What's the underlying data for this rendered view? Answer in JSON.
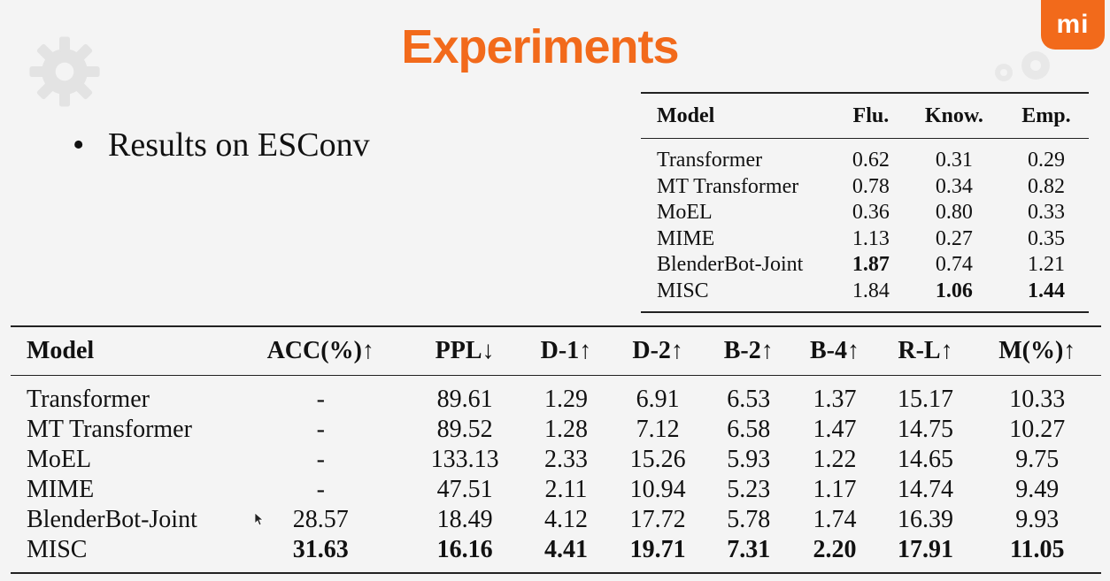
{
  "title": "Experiments",
  "logo_text": "mi",
  "bullet": "Results on ESConv",
  "human_eval_table": {
    "headers": [
      "Model",
      "Flu.",
      "Know.",
      "Emp."
    ],
    "rows": [
      [
        "Transformer",
        "0.62",
        "0.31",
        "0.29"
      ],
      [
        "MT Transformer",
        "0.78",
        "0.34",
        "0.82"
      ],
      [
        "MoEL",
        "0.36",
        "0.80",
        "0.33"
      ],
      [
        "MIME",
        "1.13",
        "0.27",
        "0.35"
      ],
      [
        "BlenderBot-Joint",
        "1.87",
        "0.74",
        "1.21"
      ],
      [
        "MISC",
        "1.84",
        "1.06",
        "1.44"
      ]
    ]
  },
  "auto_eval_table": {
    "headers": [
      "Model",
      "ACC(%)↑",
      "PPL↓",
      "D-1↑",
      "D-2↑",
      "B-2↑",
      "B-4↑",
      "R-L↑",
      "M(%)↑"
    ],
    "rows": [
      [
        "Transformer",
        "-",
        "89.61",
        "1.29",
        "6.91",
        "6.53",
        "1.37",
        "15.17",
        "10.33"
      ],
      [
        "MT Transformer",
        "-",
        "89.52",
        "1.28",
        "7.12",
        "6.58",
        "1.47",
        "14.75",
        "10.27"
      ],
      [
        "MoEL",
        "-",
        "133.13",
        "2.33",
        "15.26",
        "5.93",
        "1.22",
        "14.65",
        "9.75"
      ],
      [
        "MIME",
        "-",
        "47.51",
        "2.11",
        "10.94",
        "5.23",
        "1.17",
        "14.74",
        "9.49"
      ],
      [
        "BlenderBot-Joint",
        "28.57",
        "18.49",
        "4.12",
        "17.72",
        "5.78",
        "1.74",
        "16.39",
        "9.93"
      ],
      [
        "MISC",
        "31.63",
        "16.16",
        "4.41",
        "19.71",
        "7.31",
        "2.20",
        "17.91",
        "11.05"
      ]
    ]
  },
  "colors": {
    "accent": "#f26a1b"
  }
}
